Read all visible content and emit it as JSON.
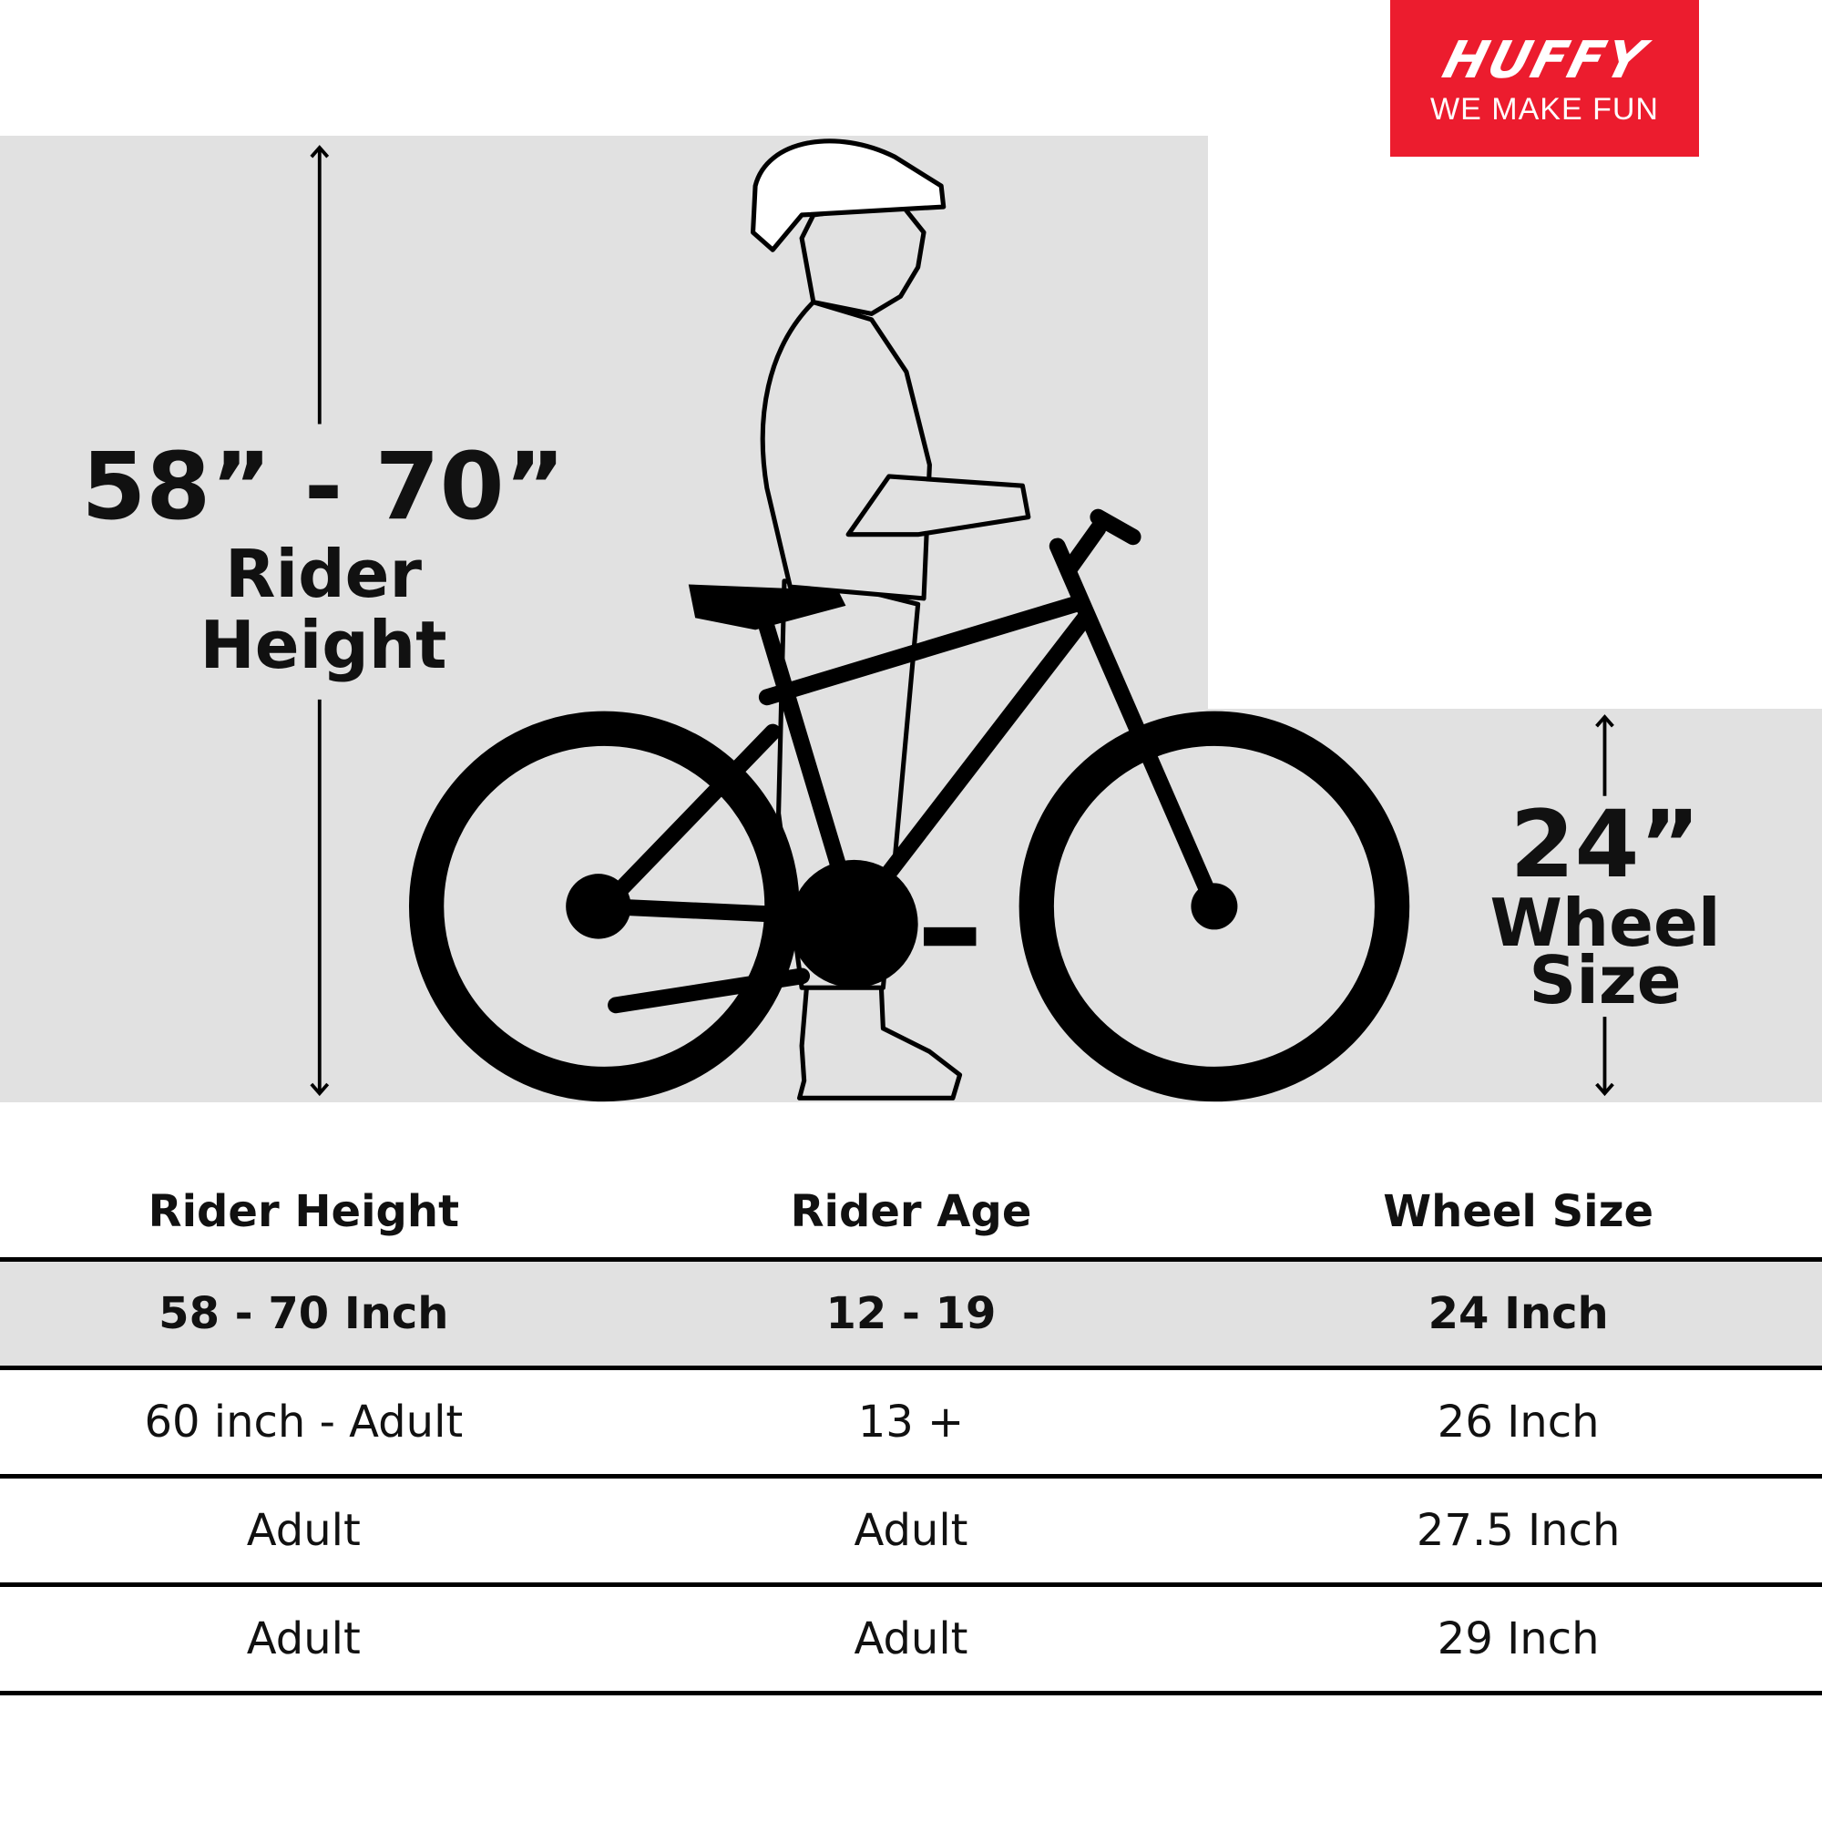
{
  "logo": {
    "brand": "HUFFY",
    "tagline": "WE MAKE FUN",
    "color": "#ec1c2e"
  },
  "illustration": {
    "rider_height_value": "58” - 70”",
    "rider_height_label_1": "Rider",
    "rider_height_label_2": "Height",
    "wheel_size_value": "24”",
    "wheel_size_label_1": "Wheel",
    "wheel_size_label_2": "Size"
  },
  "table": {
    "headers": [
      "Rider Height",
      "Rider Age",
      "Wheel Size"
    ],
    "rows": [
      [
        "58 - 70 Inch",
        "12 - 19",
        "24 Inch"
      ],
      [
        "60 inch - Adult",
        "13 +",
        "26 Inch"
      ],
      [
        "Adult",
        "Adult",
        "27.5 Inch"
      ],
      [
        "Adult",
        "Adult",
        "29 Inch"
      ]
    ],
    "highlight_color": "#e1e1e1"
  }
}
